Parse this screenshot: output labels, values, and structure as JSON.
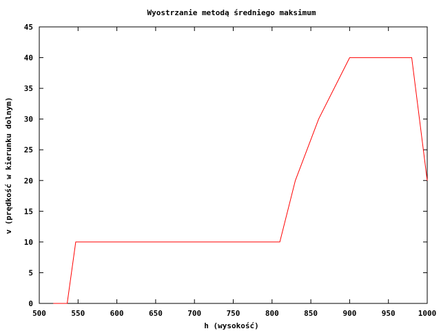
{
  "chart_data": {
    "type": "line",
    "title": "Wyostrzanie metodą średniego maksimum",
    "xlabel": "h (wysokość)",
    "ylabel": "v (prędkość w kierunku dolnym)",
    "xlim": [
      500,
      1000
    ],
    "ylim": [
      0,
      45
    ],
    "xticks": [
      500,
      550,
      600,
      650,
      700,
      750,
      800,
      850,
      900,
      950,
      1000
    ],
    "yticks": [
      0,
      5,
      10,
      15,
      20,
      25,
      30,
      35,
      40,
      45
    ],
    "grid": false,
    "legend": "none",
    "series": [
      {
        "color": "#ff0000",
        "x": [
          518,
          536,
          547,
          810,
          830,
          860,
          900,
          960,
          980,
          1000
        ],
        "y": [
          0,
          0,
          10,
          10,
          20,
          30,
          40,
          40,
          40,
          20
        ]
      }
    ]
  }
}
